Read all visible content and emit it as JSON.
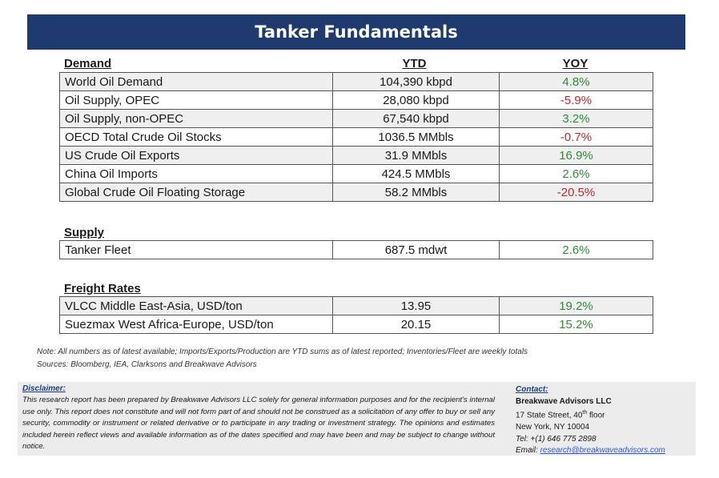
{
  "title": "Tanker Fundamentals",
  "columns": {
    "ytd": "YTD",
    "yoy": "YOY"
  },
  "demand": {
    "title": "Demand",
    "rows": [
      {
        "name": "World Oil Demand",
        "ytd": "104,390 kbpd",
        "yoy": "4.8%",
        "trend": "pos"
      },
      {
        "name": "Oil Supply, OPEC",
        "ytd": "28,080 kbpd",
        "yoy": "-5.9%",
        "trend": "neg"
      },
      {
        "name": "Oil Supply, non-OPEC",
        "ytd": "67,540 kbpd",
        "yoy": "3.2%",
        "trend": "pos"
      },
      {
        "name": "OECD Total Crude Oil Stocks",
        "ytd": "1036.5 MMbls",
        "yoy": "-0.7%",
        "trend": "neg"
      },
      {
        "name": "US Crude Oil Exports",
        "ytd": "31.9 MMbls",
        "yoy": "16.9%",
        "trend": "pos"
      },
      {
        "name": "China Oil Imports",
        "ytd": "424.5 MMbls",
        "yoy": "2.6%",
        "trend": "pos"
      },
      {
        "name": "Global Crude Oil Floating Storage",
        "ytd": "58.2 MMbls",
        "yoy": "-20.5%",
        "trend": "neg"
      }
    ]
  },
  "supply": {
    "title": "Supply",
    "rows": [
      {
        "name": "Tanker Fleet",
        "ytd": "687.5 mdwt",
        "yoy": "2.6%",
        "trend": "pos"
      }
    ]
  },
  "freight": {
    "title": "Freight Rates",
    "rows": [
      {
        "name": "VLCC Middle East-Asia, USD/ton",
        "ytd": "13.95",
        "yoy": "19.2%",
        "trend": "pos"
      },
      {
        "name": "Suezmax West Africa-Europe, USD/ton",
        "ytd": "20.15",
        "yoy": "15.2%",
        "trend": "pos"
      }
    ]
  },
  "notes": {
    "note": "Note:  All numbers as of latest available; Imports/Exports/Production are YTD sums as of latest reported; Inventories/Fleet are weekly totals",
    "sources": "Sources: Bloomberg, IEA, Clarksons and Breakwave Advisors"
  },
  "disclaimer": {
    "title": "Disclaimer:",
    "body": "This research report has been prepared by Breakwave Advisors LLC solely for general information purposes and for the recipient's internal use only. This report does not constitute and will not form part of and should not be construed as a solicitation of any offer to buy or sell any security, commodity or instrument or related derivative or to participate in any trading or investment strategy. The opinions and estimates included herein reflect views and available information as of the dates specified and may have been and may be subject to change without notice."
  },
  "contact": {
    "title": "Contact:",
    "name": "Breakwave Advisors LLC",
    "street_pre": "17 State Street, 40",
    "street_sup": "th",
    "street_post": " floor",
    "city": "New York, NY 10004",
    "tel": "Tel: +(1) 646 775 2898",
    "email_label": "Email: ",
    "email": "research@breakwaveadvisors.com"
  },
  "colors": {
    "header_bg": "#1f3a6e",
    "positive": "#2e8b3a",
    "negative": "#c0282d",
    "link": "#2d5bd6"
  }
}
